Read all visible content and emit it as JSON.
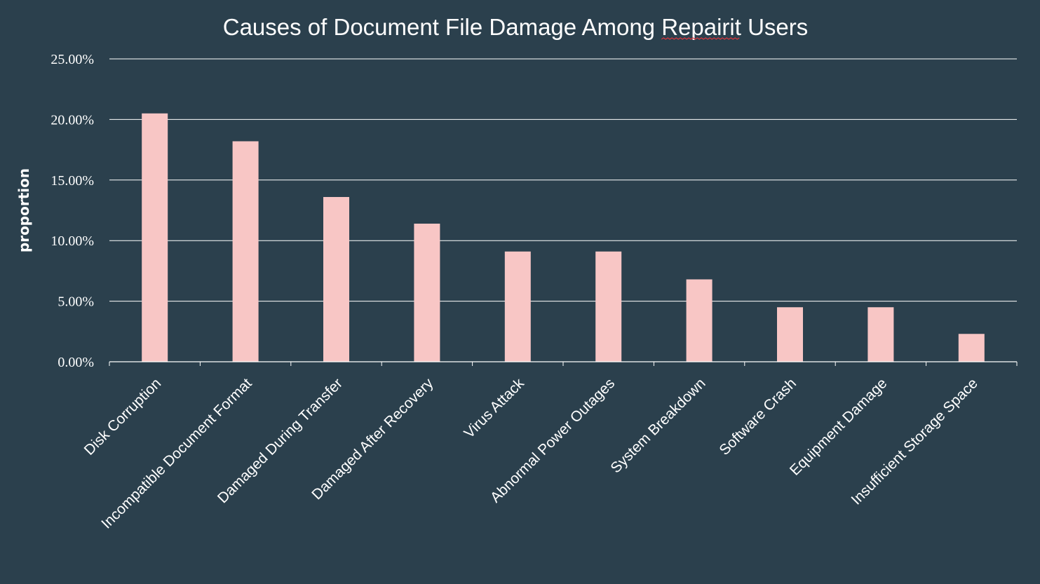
{
  "chart_data": {
    "type": "bar",
    "title": "Causes of Document File Damage Among Repairit Users",
    "xlabel": "",
    "ylabel": "proportion",
    "categories": [
      "Disk Corruption",
      "Incompatible Document Format",
      "Damaged During Transfer",
      "Damaged After Recovery",
      "Virus Attack",
      "Abnormal Power Outages",
      "System Breakdown",
      "Software Crash",
      "Equipment Damage",
      "Insufficient Storage Space"
    ],
    "values": [
      20.5,
      18.2,
      13.6,
      11.4,
      9.1,
      9.1,
      6.8,
      4.5,
      4.5,
      2.3
    ],
    "value_unit": "percent",
    "ylim": [
      0,
      25
    ],
    "yticks": [
      0,
      5,
      10,
      15,
      20,
      25
    ],
    "ytick_labels": [
      "0.00%",
      "5.00%",
      "10.00%",
      "15.00%",
      "20.00%",
      "25.00%"
    ],
    "grid": true,
    "legend": "none",
    "colors": {
      "background": "#2b404d",
      "bar": "#f8c6c5",
      "text": "#ffffff",
      "grid": "#ffffff",
      "spellcheck_underline": "#d9363e"
    }
  }
}
